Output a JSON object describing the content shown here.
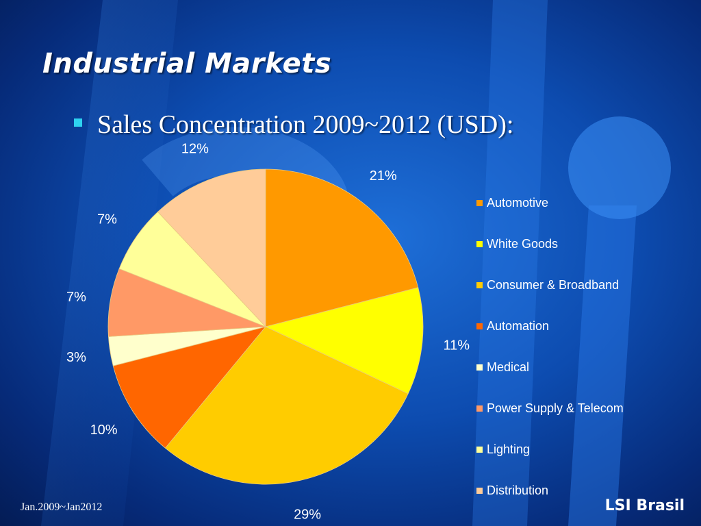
{
  "slide": {
    "title": "Industrial Markets",
    "bullet": "Sales Concentration 2009~2012 (USD):",
    "footer_left": "Jan.2009~Jan2012",
    "footer_right": "LSI Brasil"
  },
  "colors": {
    "background": "#0d4cb0",
    "bullet": "#2ed3f0",
    "text": "#ffffff"
  },
  "chart_data": {
    "type": "pie",
    "title": "",
    "start_angle": "12 o'clock",
    "direction": "clockwise",
    "legend_position": "right",
    "slices": [
      {
        "label": "Automotive",
        "value": 21,
        "display": "21%",
        "color": "#ff9900"
      },
      {
        "label": "White Goods",
        "value": 11,
        "display": "11%",
        "color": "#ffff00"
      },
      {
        "label": "Consumer & Broadband",
        "value": 29,
        "display": "29%",
        "color": "#ffcc00"
      },
      {
        "label": "Automation",
        "value": 10,
        "display": "10%",
        "color": "#ff6600"
      },
      {
        "label": "Medical",
        "value": 3,
        "display": "3%",
        "color": "#ffffcc"
      },
      {
        "label": "Power Supply & Telecom",
        "value": 7,
        "display": "7%",
        "color": "#ff9966"
      },
      {
        "label": "Lighting",
        "value": 7,
        "display": "7%",
        "color": "#ffff99"
      },
      {
        "label": "Distribution",
        "value": 12,
        "display": "12%",
        "color": "#ffcc99"
      }
    ]
  }
}
